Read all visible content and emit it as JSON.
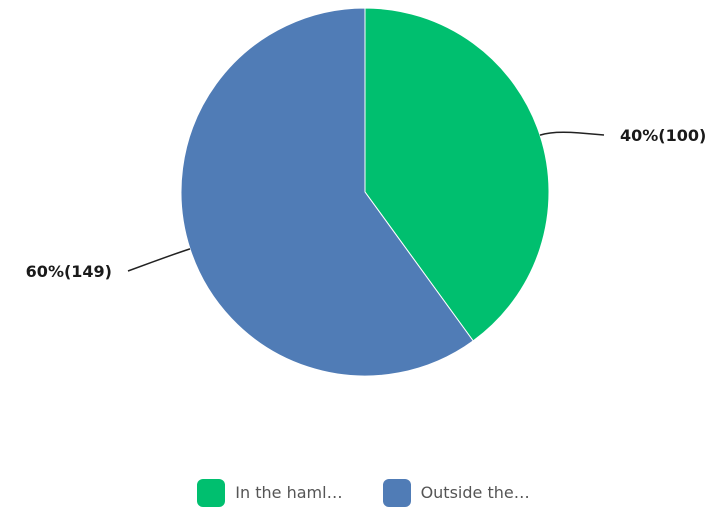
{
  "chart_data": {
    "type": "pie",
    "slices": [
      {
        "legend_label": "In the haml…",
        "percent": 40,
        "count": 100,
        "label": "40%(100)",
        "color": "#00BF6F"
      },
      {
        "legend_label": "Outside the…",
        "percent": 60,
        "count": 149,
        "label": "60%(149)",
        "color": "#507CB6"
      }
    ],
    "start_angle_deg": 0,
    "direction": "clockwise",
    "legend_position": "bottom"
  }
}
